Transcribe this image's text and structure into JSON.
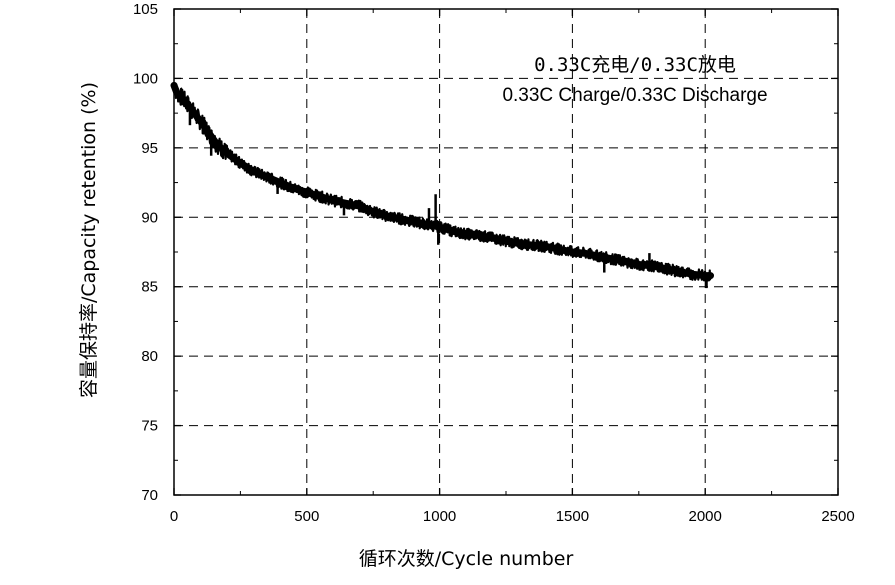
{
  "chart_data": {
    "type": "line",
    "title": "",
    "xlabel": "循环次数/Cycle number",
    "ylabel": "容量保持率/Capacity retention (%)",
    "xlim": [
      0,
      2500
    ],
    "ylim": [
      70,
      105
    ],
    "x_ticks": [
      "0",
      "500",
      "1000",
      "1500",
      "2000",
      "2500"
    ],
    "y_ticks": [
      "70",
      "75",
      "80",
      "85",
      "90",
      "95",
      "100",
      "105"
    ],
    "grid": "dashed at major ticks",
    "legend": {
      "position": "top-right",
      "lines": [
        "0.33C充电/0.33C放电",
        "0.33C Charge/0.33C Discharge"
      ]
    },
    "series": [
      {
        "x": [
          0,
          10,
          25,
          50,
          80,
          100,
          130,
          160,
          200,
          250,
          300,
          350,
          400,
          450,
          500,
          550,
          600,
          650,
          700,
          750,
          800,
          850,
          900,
          950,
          1000,
          1050,
          1100,
          1150,
          1200,
          1250,
          1300,
          1350,
          1400,
          1450,
          1500,
          1550,
          1600,
          1650,
          1700,
          1750,
          1800,
          1850,
          1900,
          1950,
          2000,
          2020
        ],
        "y": [
          99.5,
          99.0,
          98.7,
          98.2,
          97.4,
          96.9,
          96.1,
          95.3,
          94.6,
          93.9,
          93.3,
          92.9,
          92.5,
          92.1,
          91.8,
          91.5,
          91.2,
          91.0,
          90.8,
          90.4,
          90.1,
          89.9,
          89.7,
          89.5,
          89.3,
          89.0,
          88.8,
          88.7,
          88.5,
          88.3,
          88.1,
          88.0,
          87.9,
          87.7,
          87.5,
          87.4,
          87.2,
          87.0,
          86.8,
          86.6,
          86.5,
          86.3,
          86.1,
          85.9,
          85.8,
          85.8
        ],
        "color": "#000000"
      }
    ]
  }
}
